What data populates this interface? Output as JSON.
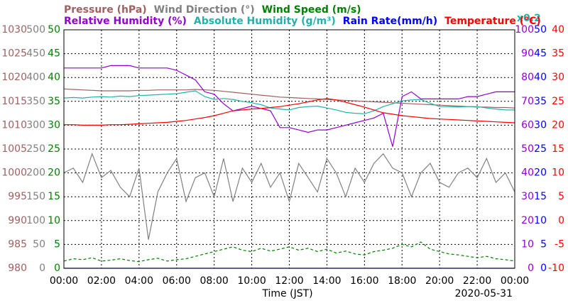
{
  "chart_data": {
    "type": "line",
    "xlabel": "Time (JST)",
    "date": "2020-05-31",
    "scale_note": "x0.2",
    "scale_note_color": "#20b2aa",
    "xlim": [
      0,
      24
    ],
    "xticks": [
      {
        "value": 0,
        "label": "00:00"
      },
      {
        "value": 2,
        "label": "02:00"
      },
      {
        "value": 4,
        "label": "04:00"
      },
      {
        "value": 6,
        "label": "06:00"
      },
      {
        "value": 8,
        "label": "08:00"
      },
      {
        "value": 10,
        "label": "10:00"
      },
      {
        "value": 12,
        "label": "12:00"
      },
      {
        "value": 14,
        "label": "14:00"
      },
      {
        "value": 16,
        "label": "16:00"
      },
      {
        "value": 18,
        "label": "18:00"
      },
      {
        "value": 20,
        "label": "20:00"
      },
      {
        "value": 22,
        "label": "22:00"
      },
      {
        "value": 24,
        "label": "00:00"
      }
    ],
    "grid": true,
    "axes": [
      {
        "side": "left",
        "color": "#a06060",
        "lim": [
          980,
          1030
        ],
        "ticks": [
          980,
          985,
          990,
          995,
          1000,
          1005,
          1010,
          1015,
          1020,
          1025,
          1030
        ]
      },
      {
        "side": "left",
        "color": "#808080",
        "lim": [
          0,
          500
        ],
        "ticks": [
          0,
          50,
          100,
          150,
          200,
          250,
          300,
          350,
          400,
          450,
          500
        ]
      },
      {
        "side": "left",
        "color": "#008000",
        "lim": [
          0,
          50
        ],
        "ticks": [
          0,
          5,
          10,
          15,
          20,
          25,
          30,
          35,
          40,
          45,
          50
        ]
      },
      {
        "side": "right",
        "color": "#9400d3",
        "lim": [
          0,
          100
        ],
        "ticks": [
          0,
          10,
          20,
          30,
          40,
          50,
          60,
          70,
          80,
          90,
          100
        ]
      },
      {
        "side": "right",
        "color": "#0000ff",
        "lim": [
          0,
          50
        ],
        "ticks": [
          0,
          5,
          10,
          15,
          20,
          25,
          30,
          35,
          40,
          45,
          50
        ]
      },
      {
        "side": "right",
        "color": "#ff0000",
        "lim": [
          -10,
          40
        ],
        "ticks": [
          -10,
          -5,
          0,
          5,
          10,
          15,
          20,
          25,
          30,
          35,
          40
        ]
      }
    ],
    "x": [
      0,
      0.5,
      1,
      1.5,
      2,
      2.5,
      3,
      3.5,
      4,
      4.5,
      5,
      5.5,
      6,
      6.5,
      7,
      7.5,
      8,
      8.5,
      9,
      9.5,
      10,
      10.5,
      11,
      11.5,
      12,
      12.5,
      13,
      13.5,
      14,
      14.5,
      15,
      15.5,
      16,
      16.5,
      17,
      17.5,
      18,
      18.5,
      19,
      19.5,
      20,
      20.5,
      21,
      21.5,
      22,
      22.5,
      23,
      23.5,
      24
    ],
    "series": [
      {
        "name": "Pressure (hPa)",
        "color": "#a06060",
        "axis": 0,
        "legend_row": 0,
        "values": [
          1017.6,
          1017.5,
          1017.4,
          1017.3,
          1017.2,
          1017.2,
          1017.2,
          1017.2,
          1017.3,
          1017.3,
          1017.4,
          1017.4,
          1017.4,
          1017.4,
          1017.5,
          1017.4,
          1017.3,
          1017.1,
          1016.9,
          1016.7,
          1016.5,
          1016.3,
          1016.1,
          1015.9,
          1015.8,
          1015.7,
          1015.6,
          1015.5,
          1015.4,
          1015.3,
          1015.2,
          1015.1,
          1015.0,
          1014.9,
          1014.8,
          1014.7,
          1014.6,
          1014.5,
          1014.4,
          1014.3,
          1014.2,
          1014.1,
          1014.0,
          1013.9,
          1013.8,
          1013.8,
          1013.7,
          1013.7,
          1013.6
        ]
      },
      {
        "name": "Wind Direction (°)",
        "color": "#808080",
        "axis": 1,
        "legend_row": 0,
        "values": [
          200,
          210,
          180,
          240,
          190,
          205,
          170,
          150,
          210,
          60,
          160,
          200,
          230,
          140,
          190,
          200,
          150,
          230,
          140,
          210,
          180,
          220,
          170,
          200,
          140,
          220,
          190,
          160,
          230,
          200,
          150,
          210,
          180,
          220,
          240,
          210,
          200,
          150,
          200,
          220,
          180,
          170,
          200,
          210,
          190,
          230,
          180,
          200,
          160
        ]
      },
      {
        "name": "Wind Speed (m/s)",
        "color": "#008000",
        "axis": 2,
        "legend_row": 0,
        "dashed": true,
        "values": [
          1.5,
          2.0,
          1.8,
          2.2,
          1.5,
          1.7,
          2.0,
          1.6,
          1.4,
          1.8,
          2.1,
          1.5,
          1.8,
          2.0,
          2.5,
          3.0,
          3.5,
          4.0,
          4.5,
          3.8,
          3.5,
          4.2,
          3.6,
          4.0,
          4.5,
          3.8,
          4.2,
          3.5,
          4.0,
          3.2,
          3.6,
          3.0,
          2.8,
          3.5,
          3.8,
          4.2,
          5.0,
          4.5,
          5.5,
          4.0,
          3.5,
          3.0,
          2.8,
          2.5,
          2.2,
          2.5,
          2.0,
          1.8,
          1.5
        ]
      },
      {
        "name": "Relative Humidity (%)",
        "color": "#9400d3",
        "axis": 3,
        "legend_row": 1,
        "values": [
          84,
          84,
          84,
          84,
          84,
          85,
          85,
          85,
          84,
          84,
          84,
          84,
          83,
          81,
          79,
          74,
          73,
          69,
          66,
          67,
          68,
          67,
          66,
          59,
          59,
          58,
          57,
          58,
          58,
          59,
          60,
          61,
          62,
          63,
          65,
          51,
          72,
          74,
          71,
          71,
          71,
          71,
          71,
          72,
          72,
          73,
          74,
          74,
          74
        ]
      },
      {
        "name": "Absolute Humidity (g/m³)",
        "color": "#20b2aa",
        "axis": 4,
        "legend_row": 1,
        "values": [
          35.7,
          35.8,
          35.7,
          35.9,
          36.0,
          35.9,
          36.1,
          36.0,
          36.2,
          36.3,
          36.4,
          36.5,
          36.6,
          36.9,
          37.2,
          36.0,
          35.4,
          35.6,
          35.4,
          35.0,
          34.7,
          34.3,
          33.6,
          33.4,
          33.2,
          33.7,
          33.9,
          34.0,
          33.6,
          33.2,
          32.7,
          32.5,
          32.4,
          33.0,
          33.9,
          34.5,
          35.1,
          35.3,
          35.4,
          34.6,
          33.9,
          33.9,
          33.8,
          33.9,
          33.9,
          33.6,
          33.4,
          33.2,
          33.2
        ]
      },
      {
        "name": "Rain Rate(mm/h)",
        "color": "#0000ff",
        "axis": 4,
        "legend_row": 1,
        "values": [
          0,
          0,
          0,
          0,
          0,
          0,
          0,
          0,
          0,
          0,
          0,
          0,
          0,
          0,
          0,
          0,
          0,
          0,
          0,
          0,
          0,
          0,
          0,
          0,
          0,
          0,
          0,
          0,
          0,
          0,
          0,
          0,
          0,
          0,
          0,
          0,
          0,
          0,
          0,
          0,
          0,
          0,
          0,
          0,
          0,
          0,
          0,
          0,
          0
        ]
      },
      {
        "name": "Temperature (°C)",
        "color": "#ff0000",
        "axis": 5,
        "legend_row": 1,
        "values": [
          20.1,
          20.1,
          20.0,
          20.0,
          20.0,
          20.1,
          20.1,
          20.2,
          20.3,
          20.4,
          20.5,
          20.6,
          20.8,
          21.0,
          21.3,
          21.6,
          22.0,
          22.5,
          23.0,
          23.2,
          23.4,
          23.5,
          23.7,
          23.9,
          24.2,
          24.5,
          24.9,
          25.3,
          25.6,
          25.3,
          24.8,
          24.3,
          23.8,
          23.2,
          22.6,
          22.3,
          22.0,
          21.8,
          21.6,
          21.4,
          21.3,
          21.2,
          21.1,
          21.0,
          20.9,
          20.8,
          20.7,
          20.6,
          20.5
        ]
      }
    ]
  }
}
